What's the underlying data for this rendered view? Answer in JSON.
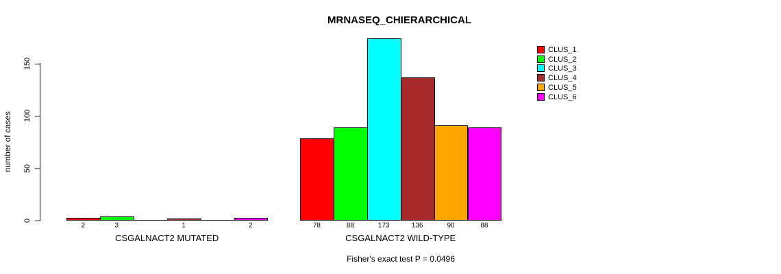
{
  "chart_data": {
    "type": "bar",
    "title": "MRNASEQ_CHIERARCHICAL",
    "ylabel": "number of cases",
    "xlabel": "",
    "yticks": [
      0,
      50,
      100,
      150
    ],
    "ylim": [
      0,
      175
    ],
    "grid": false,
    "legend_position": "topright",
    "categories": [
      "CSGALNACT2 MUTATED",
      "CSGALNACT2 WILD-TYPE"
    ],
    "series": [
      {
        "name": "CLUS_1",
        "color": "#FF0000",
        "values": [
          2,
          78
        ]
      },
      {
        "name": "CLUS_2",
        "color": "#00FF00",
        "values": [
          3,
          88
        ]
      },
      {
        "name": "CLUS_3",
        "color": "#00FFFF",
        "values": [
          0,
          173
        ]
      },
      {
        "name": "CLUS_4",
        "color": "#A52A2A",
        "values": [
          1,
          136
        ]
      },
      {
        "name": "CLUS_5",
        "color": "#FFA500",
        "values": [
          0,
          90
        ]
      },
      {
        "name": "CLUS_6",
        "color": "#FF00FF",
        "values": [
          2,
          88
        ]
      }
    ],
    "bar_value_labels": {
      "CSGALNACT2 MUTATED": [
        "2",
        "3",
        "",
        "1",
        "",
        "2"
      ],
      "CSGALNACT2 WILD-TYPE": [
        "78",
        "88",
        "173",
        "136",
        "90",
        "88"
      ]
    },
    "annotation": "Fisher's exact test P = 0.0496"
  }
}
